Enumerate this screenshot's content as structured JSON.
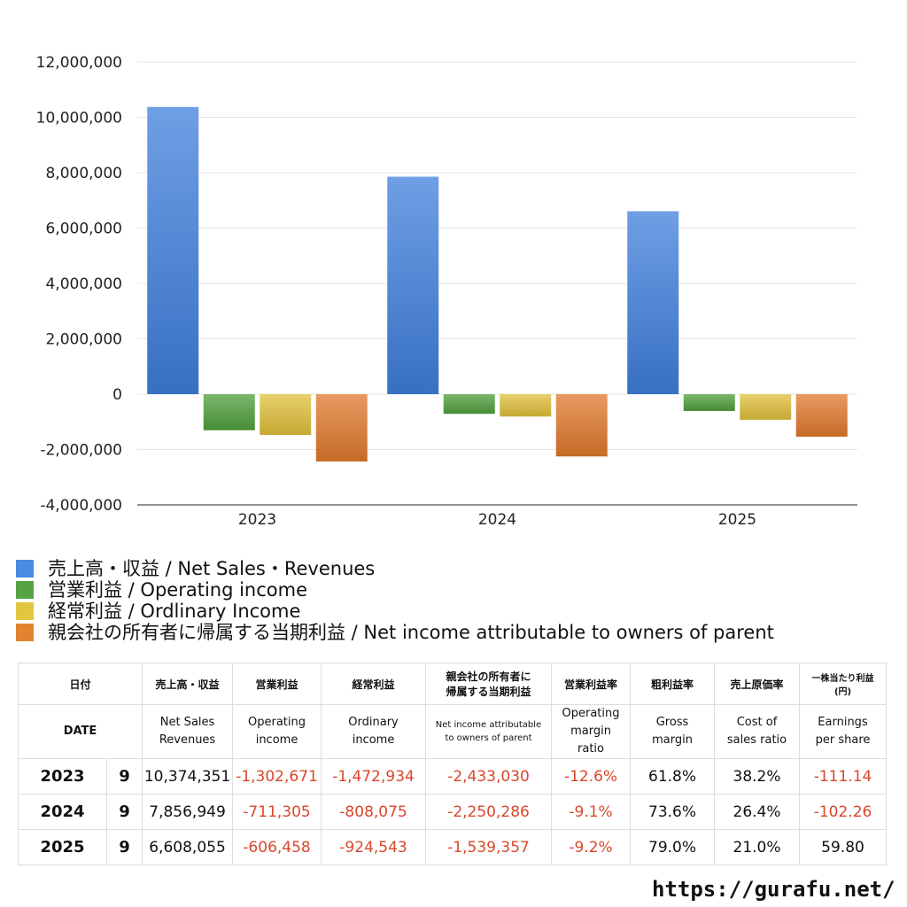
{
  "chart_data": {
    "type": "bar",
    "categories": [
      "2023",
      "2024",
      "2025"
    ],
    "series": [
      {
        "name": "売上高・収益 / Net Sales・Revenues",
        "color": "#3f7fdc",
        "values": [
          10374351,
          7856949,
          6608055
        ]
      },
      {
        "name": "営業利益 / Operating income",
        "color": "#4f9f3c",
        "values": [
          -1302671,
          -711305,
          -606458
        ]
      },
      {
        "name": "経常利益 / Ordlinary Income",
        "color": "#e0c03a",
        "values": [
          -1472934,
          -808075,
          -924543
        ]
      },
      {
        "name": "親会社の所有者に帰属する当期利益 / Net income attributable to owners of parent",
        "color": "#e07a2c",
        "values": [
          -2433030,
          -2250286,
          -1539357
        ]
      }
    ],
    "ylim": [
      -4000000,
      12000000
    ],
    "yticks": [
      12000000,
      10000000,
      8000000,
      6000000,
      4000000,
      2000000,
      0,
      -2000000,
      -4000000
    ],
    "ytick_labels": [
      "12,000,000",
      "10,000,000",
      "8,000,000",
      "6,000,000",
      "4,000,000",
      "2,000,000",
      "0",
      "-2,000,000",
      "-4,000,000"
    ],
    "title": "",
    "xlabel": "",
    "ylabel": "",
    "grid": true
  },
  "legend": [
    {
      "label": "売上高・収益 / Net Sales・Revenues",
      "color": "#4a8be3"
    },
    {
      "label": "営業利益 / Operating income",
      "color": "#56a344"
    },
    {
      "label": "経常利益 / Ordlinary Income",
      "color": "#e3c640"
    },
    {
      "label": "親会社の所有者に帰属する当期利益 / Net income attributable to owners of parent",
      "color": "#e2832f"
    }
  ],
  "table": {
    "header_jp": {
      "date": "日付",
      "sales": "売上高・収益",
      "op": "営業利益",
      "ord": "経常利益",
      "net_l1": "親会社の所有者に",
      "net_l2": "帰属する当期利益",
      "opm": "営業利益率",
      "gm": "粗利益率",
      "cogs": "売上原価率",
      "eps_l1": "一株当たり利益",
      "eps_l2": "(円)"
    },
    "header_en": {
      "date": "DATE",
      "sales_l1": "Net Sales",
      "sales_l2": "Revenues",
      "op_l1": "Operating",
      "op_l2": "income",
      "ord_l1": "Ordinary",
      "ord_l2": "income",
      "net_l1": "Net income attributable",
      "net_l2": "to owners of parent",
      "opm_l1": "Operating",
      "opm_l2": "margin",
      "opm_l3": "ratio",
      "gm_l1": "Gross",
      "gm_l2": "margin",
      "cogs_l1": "Cost of",
      "cogs_l2": "sales ratio",
      "eps_l1": "Earnings",
      "eps_l2": "per share"
    },
    "rows": [
      {
        "year": "2023",
        "month": "9",
        "sales": "10,374,351",
        "op": "-1,302,671",
        "ord": "-1,472,934",
        "net": "-2,433,030",
        "opm": "-12.6%",
        "gm": "61.8%",
        "cogs": "38.2%",
        "eps": "-111.14"
      },
      {
        "year": "2024",
        "month": "9",
        "sales": "7,856,949",
        "op": "-711,305",
        "ord": "-808,075",
        "net": "-2,250,286",
        "opm": "-9.1%",
        "gm": "73.6%",
        "cogs": "26.4%",
        "eps": "-102.26"
      },
      {
        "year": "2025",
        "month": "9",
        "sales": "6,608,055",
        "op": "-606,458",
        "ord": "-924,543",
        "net": "-1,539,357",
        "opm": "-9.2%",
        "gm": "79.0%",
        "cogs": "21.0%",
        "eps": "59.80"
      }
    ]
  },
  "site_url": "https://gurafu.net/"
}
